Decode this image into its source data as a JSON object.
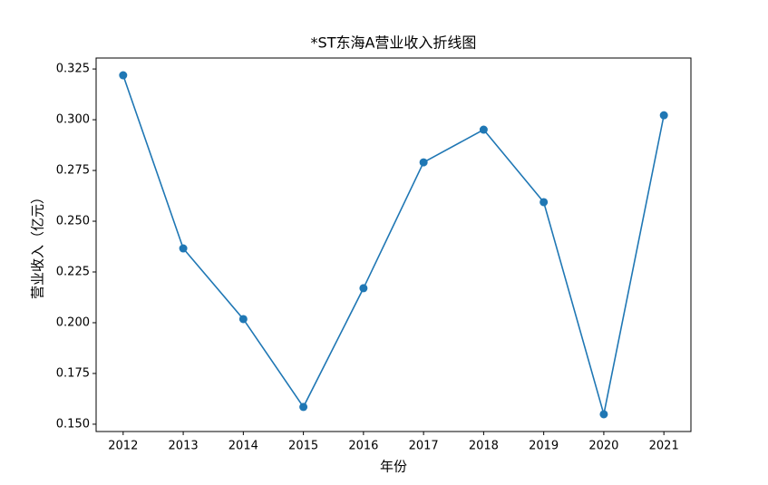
{
  "chart_data": {
    "type": "line",
    "title": "*ST东海A营业收入折线图",
    "x_label": "年份",
    "y_label": "营业收入（亿元）",
    "x": [
      2012,
      2013,
      2014,
      2015,
      2016,
      2017,
      2018,
      2019,
      2020,
      2021
    ],
    "series": [
      {
        "name": "营业收入",
        "color": "#1f77b4",
        "values": [
          0.3219,
          0.2366,
          0.2018,
          0.1585,
          0.217,
          0.279,
          0.2951,
          0.2594,
          0.1549,
          0.3022
        ]
      }
    ],
    "xlim": [
      2011.55,
      2021.45
    ],
    "xticks": [
      2012,
      2013,
      2014,
      2015,
      2016,
      2017,
      2018,
      2019,
      2020,
      2021
    ],
    "ylim": [
      0.1464,
      0.3304
    ],
    "yticks": [
      {
        "value": 0.15,
        "label": "0.150"
      },
      {
        "value": 0.175,
        "label": "0.175"
      },
      {
        "value": 0.2,
        "label": "0.200"
      },
      {
        "value": 0.225,
        "label": "0.225"
      },
      {
        "value": 0.25,
        "label": "0.250"
      },
      {
        "value": 0.275,
        "label": "0.275"
      },
      {
        "value": 0.3,
        "label": "0.300"
      },
      {
        "value": 0.325,
        "label": "0.325"
      }
    ],
    "grid": false,
    "markers": true
  }
}
